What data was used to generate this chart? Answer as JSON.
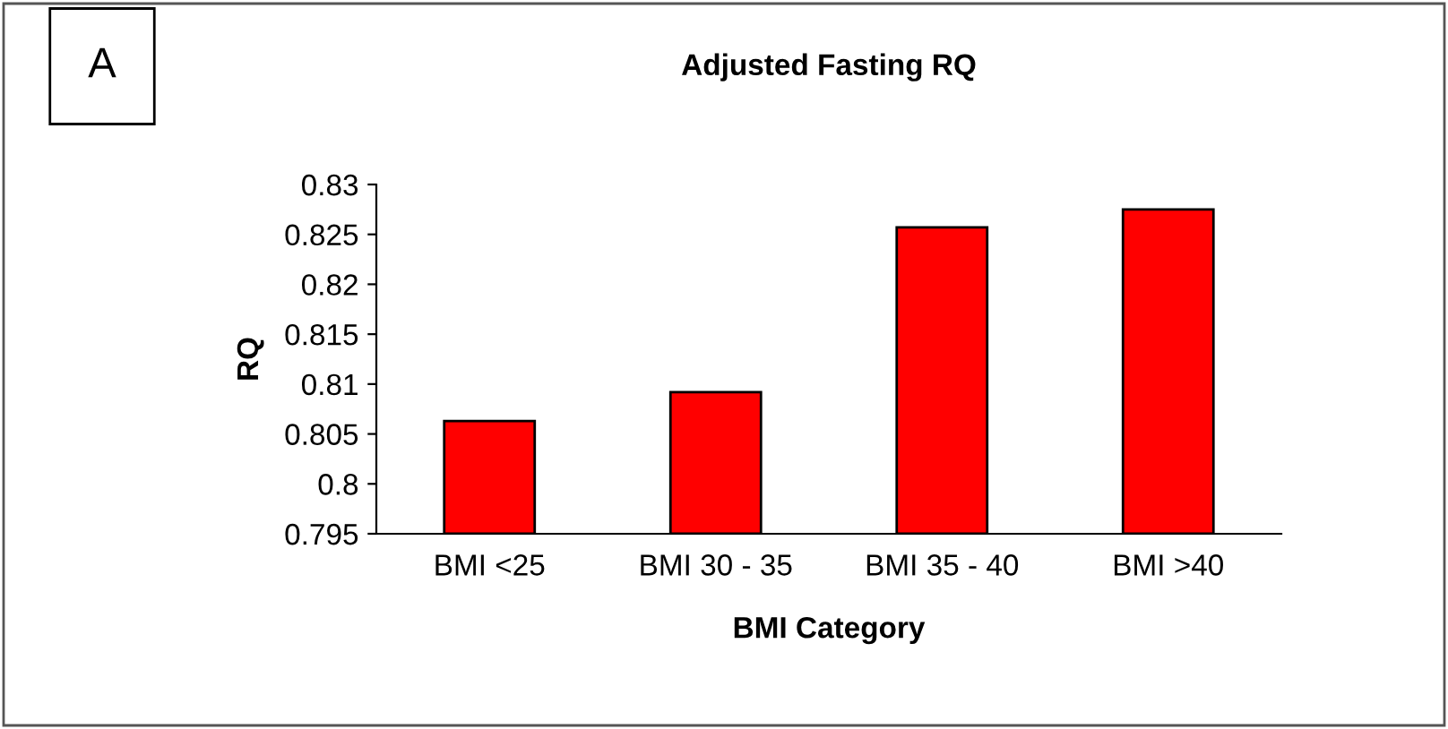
{
  "chart_data": {
    "type": "bar",
    "title": "Adjusted Fasting RQ",
    "xlabel": "BMI Category",
    "ylabel": "RQ",
    "annotations": [
      "A"
    ],
    "categories": [
      "BMI <25",
      "BMI 30 - 35",
      "BMI 35 - 40",
      "BMI >40"
    ],
    "values": [
      0.8063,
      0.8092,
      0.8257,
      0.8275
    ],
    "color": "#ff0000",
    "ylim": [
      0.795,
      0.83
    ],
    "yticks": [
      {
        "value": 0.795,
        "label": "0.795"
      },
      {
        "value": 0.8,
        "label": "0.8"
      },
      {
        "value": 0.805,
        "label": "0.805"
      },
      {
        "value": 0.81,
        "label": "0.81"
      },
      {
        "value": 0.815,
        "label": "0.815"
      },
      {
        "value": 0.82,
        "label": "0.82"
      },
      {
        "value": 0.825,
        "label": "0.825"
      },
      {
        "value": 0.83,
        "label": "0.83"
      }
    ],
    "grid": false,
    "legend": false
  }
}
